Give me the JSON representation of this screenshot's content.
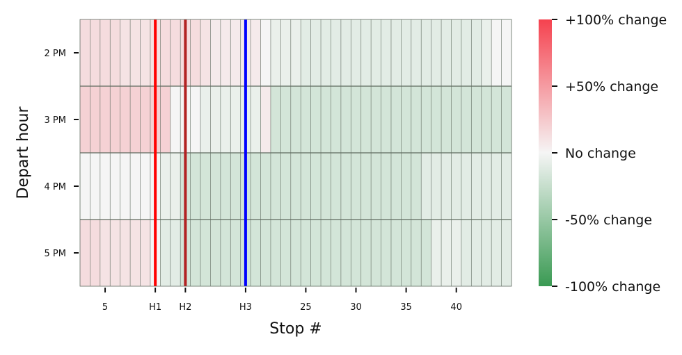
{
  "chart_data": {
    "type": "heatmap",
    "title": "",
    "xlabel": "Stop #",
    "ylabel": "Depart hour",
    "rows": [
      "2 PM",
      "3 PM",
      "4 PM",
      "5 PM"
    ],
    "n_columns": 43,
    "x_ticks": [
      {
        "label": "5",
        "column": 3
      },
      {
        "label": "H1",
        "column": 8
      },
      {
        "label": "H2",
        "column": 11
      },
      {
        "label": "H3",
        "column": 17
      },
      {
        "label": "25",
        "column": 23
      },
      {
        "label": "30",
        "column": 28
      },
      {
        "label": "35",
        "column": 33
      },
      {
        "label": "40",
        "column": 38
      }
    ],
    "vertical_markers": [
      {
        "column": 8,
        "color": "#ff0000"
      },
      {
        "column": 11,
        "color": "#b22222"
      },
      {
        "column": 17,
        "color": "#0000ff"
      }
    ],
    "values_percent_change": [
      [
        14,
        14,
        14,
        14,
        10,
        10,
        10,
        10,
        14,
        14,
        14,
        14,
        10,
        6,
        6,
        6,
        6,
        6,
        0,
        -6,
        -6,
        -6,
        -10,
        -10,
        -10,
        -10,
        -10,
        -10,
        -10,
        -10,
        -10,
        -10,
        -10,
        -10,
        -10,
        -10,
        -10,
        -10,
        -10,
        -10,
        -6,
        0,
        0
      ],
      [
        20,
        20,
        20,
        20,
        20,
        20,
        20,
        20,
        20,
        0,
        0,
        0,
        -6,
        -6,
        -6,
        -6,
        -6,
        -6,
        6,
        -18,
        -18,
        -18,
        -18,
        -18,
        -18,
        -18,
        -18,
        -18,
        -18,
        -18,
        -18,
        -18,
        -18,
        -18,
        -18,
        -18,
        -18,
        -18,
        -18,
        -18,
        -18,
        -18,
        -18
      ],
      [
        0,
        0,
        0,
        0,
        0,
        0,
        0,
        0,
        -6,
        -6,
        -18,
        -18,
        -18,
        -18,
        -18,
        -18,
        -18,
        -18,
        -18,
        -18,
        -18,
        -18,
        -18,
        -18,
        -18,
        -18,
        -18,
        -18,
        -18,
        -18,
        -18,
        -18,
        -18,
        -18,
        -10,
        -10,
        -10,
        -10,
        -10,
        -10,
        -10,
        -10,
        -10
      ],
      [
        14,
        14,
        10,
        10,
        10,
        10,
        10,
        0,
        -10,
        -10,
        -18,
        -18,
        -18,
        -18,
        -18,
        -18,
        -18,
        -18,
        -18,
        -18,
        -18,
        -18,
        -18,
        -18,
        -18,
        -18,
        -18,
        -18,
        -18,
        -18,
        -18,
        -18,
        -18,
        -18,
        -18,
        -6,
        -6,
        -6,
        -10,
        -10,
        -10,
        -10,
        -10
      ]
    ],
    "colorbar": {
      "range": [
        -100,
        100
      ],
      "ticks": [
        {
          "value": 100,
          "label": "+100% change"
        },
        {
          "value": 50,
          "label": "+50% change"
        },
        {
          "value": 0,
          "label": "No change"
        },
        {
          "value": -50,
          "label": "-50% change"
        },
        {
          "value": -100,
          "label": "-100% change"
        }
      ],
      "colors": {
        "high": "#f5424f",
        "mid": "#f5f5f5",
        "low": "#3a9a53"
      }
    },
    "grid_color": "#5f6b5f"
  }
}
